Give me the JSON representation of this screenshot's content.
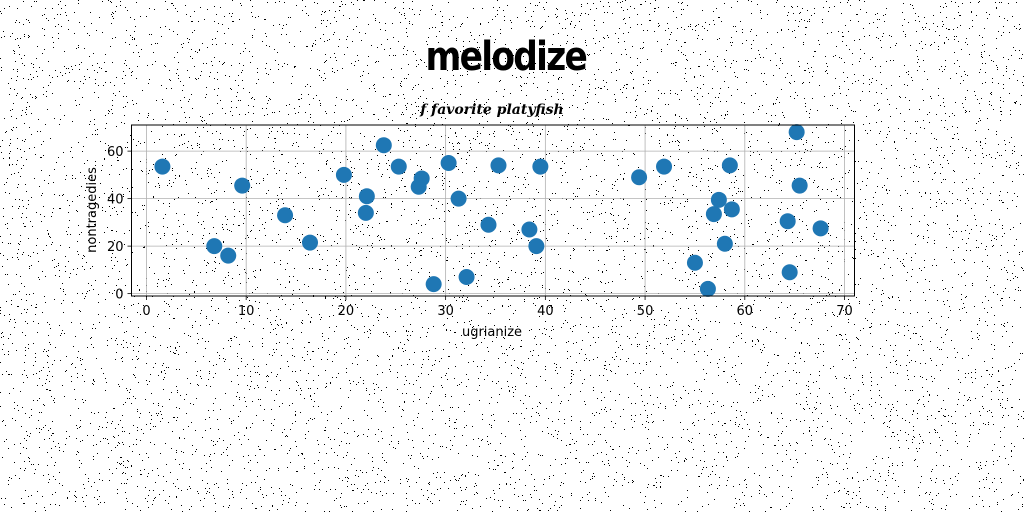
{
  "suptitle": "melodize",
  "chart_data": {
    "type": "scatter",
    "title": "f favorite platyfish",
    "xlabel": "ugrianize",
    "ylabel": "nontragedies",
    "xlim": [
      -1.5,
      71
    ],
    "ylim": [
      -1,
      71
    ],
    "xticks": [
      0,
      10,
      20,
      30,
      40,
      50,
      60,
      70
    ],
    "yticks": [
      0,
      20,
      40,
      60
    ],
    "grid": true,
    "marker_color": "#1f77b4",
    "points": [
      {
        "x": 1.6,
        "y": 53.5
      },
      {
        "x": 6.8,
        "y": 20.0
      },
      {
        "x": 8.2,
        "y": 16.0
      },
      {
        "x": 9.6,
        "y": 45.5
      },
      {
        "x": 13.9,
        "y": 33.0
      },
      {
        "x": 16.4,
        "y": 21.5
      },
      {
        "x": 19.8,
        "y": 50.0
      },
      {
        "x": 22.0,
        "y": 34.0
      },
      {
        "x": 22.1,
        "y": 41.0
      },
      {
        "x": 23.8,
        "y": 62.5
      },
      {
        "x": 25.3,
        "y": 53.5
      },
      {
        "x": 27.3,
        "y": 45.0
      },
      {
        "x": 27.6,
        "y": 48.5
      },
      {
        "x": 28.8,
        "y": 4.0
      },
      {
        "x": 30.3,
        "y": 55.0
      },
      {
        "x": 31.3,
        "y": 40.0
      },
      {
        "x": 32.1,
        "y": 7.0
      },
      {
        "x": 34.3,
        "y": 29.0
      },
      {
        "x": 35.3,
        "y": 54.0
      },
      {
        "x": 38.4,
        "y": 27.0
      },
      {
        "x": 39.1,
        "y": 20.0
      },
      {
        "x": 39.5,
        "y": 53.5
      },
      {
        "x": 49.4,
        "y": 49.0
      },
      {
        "x": 51.9,
        "y": 53.5
      },
      {
        "x": 55.0,
        "y": 13.0
      },
      {
        "x": 56.3,
        "y": 2.0
      },
      {
        "x": 56.9,
        "y": 33.5
      },
      {
        "x": 57.4,
        "y": 39.5
      },
      {
        "x": 58.0,
        "y": 21.0
      },
      {
        "x": 58.5,
        "y": 54.0
      },
      {
        "x": 58.7,
        "y": 35.5
      },
      {
        "x": 64.3,
        "y": 30.5
      },
      {
        "x": 64.5,
        "y": 9.0
      },
      {
        "x": 65.2,
        "y": 68.0
      },
      {
        "x": 65.5,
        "y": 45.5
      },
      {
        "x": 67.6,
        "y": 27.5
      }
    ]
  }
}
